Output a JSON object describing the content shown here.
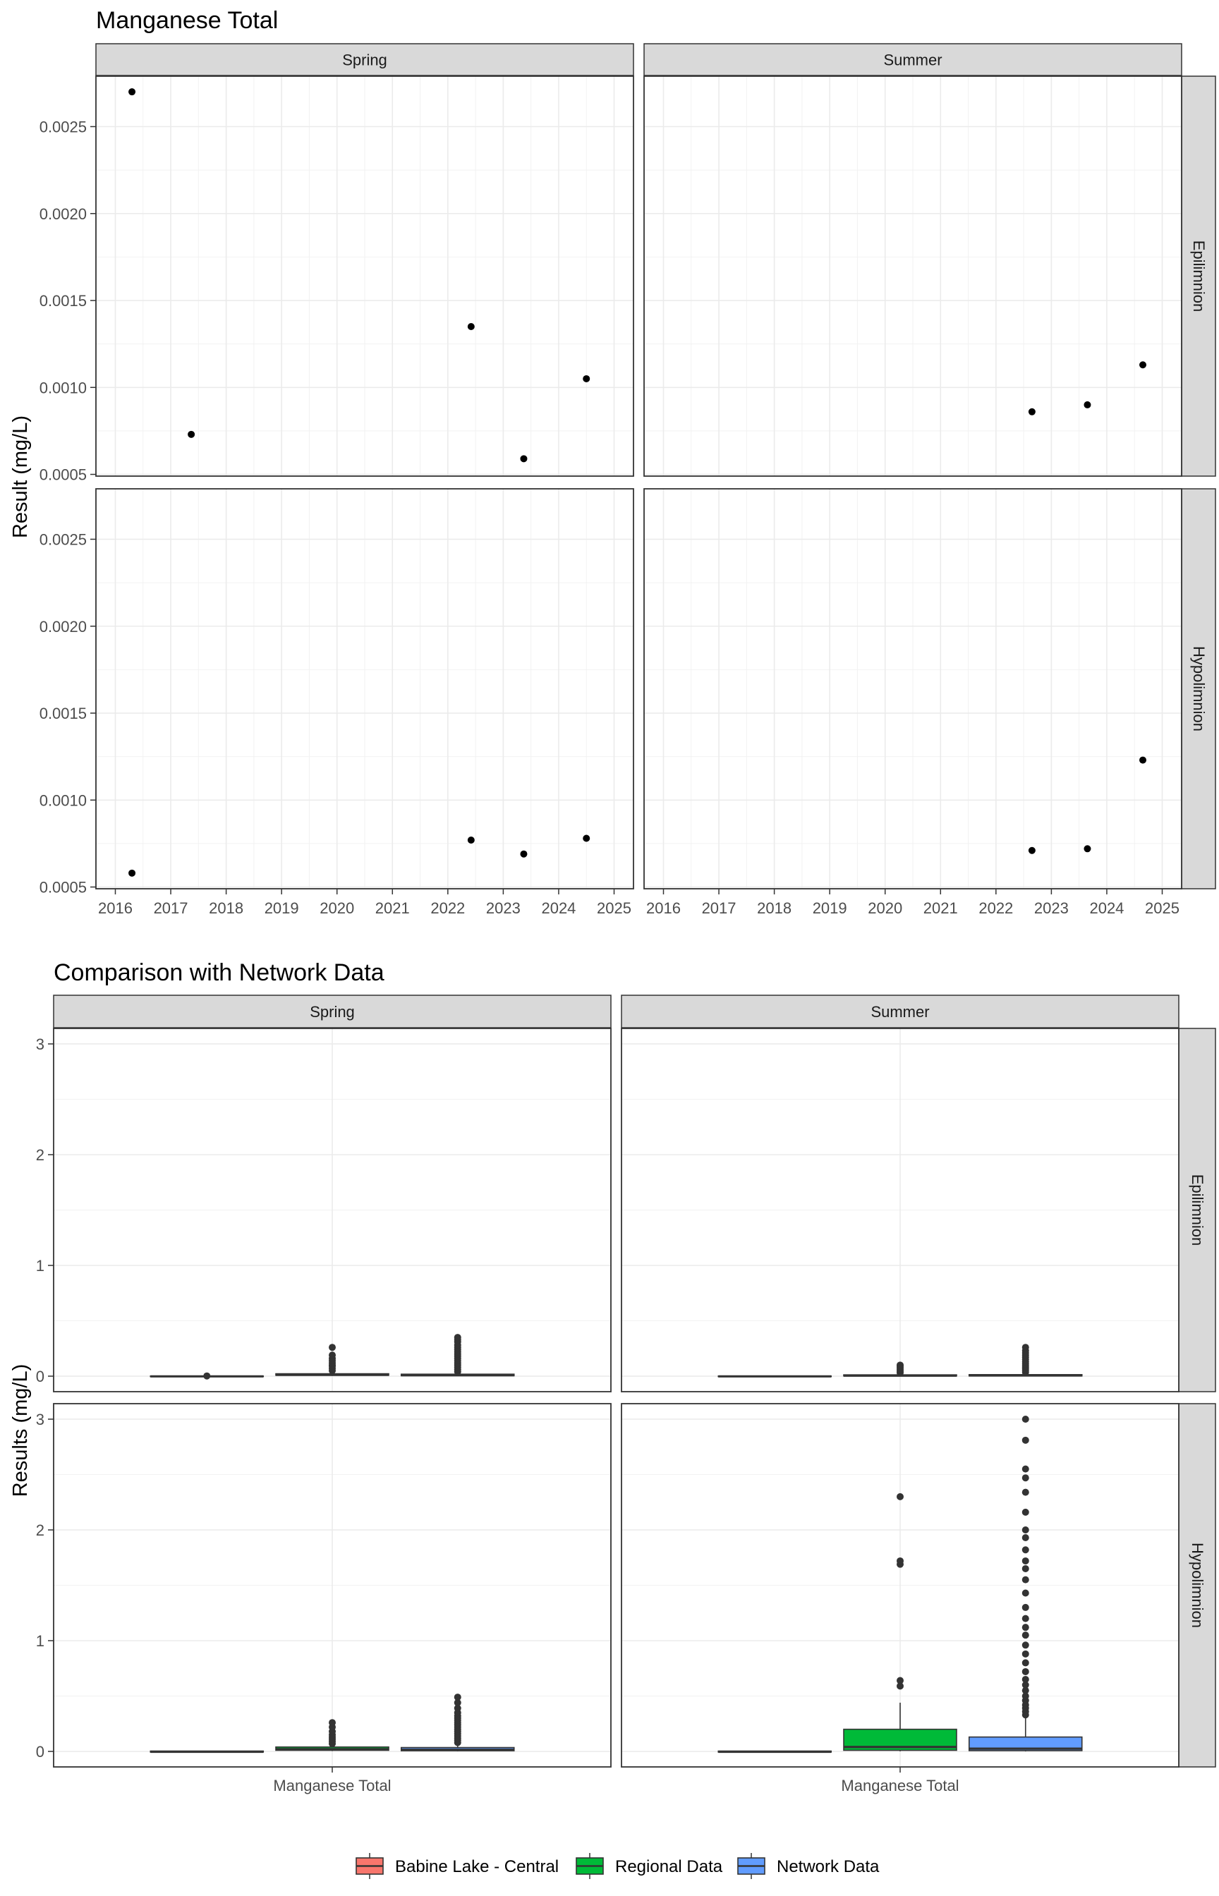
{
  "chart_data": [
    {
      "type": "scatter",
      "title": "Manganese Total",
      "ylabel": "Result (mg/L)",
      "xlabel": "",
      "columns": [
        "Spring",
        "Summer"
      ],
      "rows": [
        "Epilimnion",
        "Hypolimnion"
      ],
      "x_ticks": [
        "2016",
        "2017",
        "2018",
        "2019",
        "2020",
        "2021",
        "2022",
        "2023",
        "2024",
        "2025"
      ],
      "xlim": [
        2015.65,
        2025.35
      ],
      "y_ticks": [
        "0.0005",
        "0.0010",
        "0.0015",
        "0.0020",
        "0.0025"
      ],
      "ylim": [
        0.00049,
        0.00279
      ],
      "grid": true,
      "point_color": "#000000",
      "panels": [
        {
          "column": "Spring",
          "row": "Epilimnion",
          "points": [
            {
              "x": 2016.3,
              "y": 0.0027
            },
            {
              "x": 2017.37,
              "y": 0.00073
            },
            {
              "x": 2022.42,
              "y": 0.00135
            },
            {
              "x": 2023.37,
              "y": 0.00059
            },
            {
              "x": 2024.5,
              "y": 0.00105
            }
          ]
        },
        {
          "column": "Summer",
          "row": "Epilimnion",
          "points": [
            {
              "x": 2022.65,
              "y": 0.00086
            },
            {
              "x": 2023.65,
              "y": 0.0009
            },
            {
              "x": 2024.65,
              "y": 0.00113
            }
          ]
        },
        {
          "column": "Spring",
          "row": "Hypolimnion",
          "points": [
            {
              "x": 2016.3,
              "y": 0.00058
            },
            {
              "x": 2022.42,
              "y": 0.00077
            },
            {
              "x": 2023.37,
              "y": 0.00069
            },
            {
              "x": 2024.5,
              "y": 0.00078
            }
          ]
        },
        {
          "column": "Summer",
          "row": "Hypolimnion",
          "points": [
            {
              "x": 2022.65,
              "y": 0.00071
            },
            {
              "x": 2023.65,
              "y": 0.00072
            },
            {
              "x": 2024.65,
              "y": 0.00123
            }
          ]
        }
      ]
    },
    {
      "type": "box",
      "title": "Comparison with Network Data",
      "ylabel": "Results (mg/L)",
      "xlabel": "",
      "category": "Manganese Total",
      "columns": [
        "Spring",
        "Summer"
      ],
      "rows": [
        "Epilimnion",
        "Hypolimnion"
      ],
      "y_ticks": [
        "0",
        "1",
        "2",
        "3"
      ],
      "ylim": [
        -0.14,
        3.14
      ],
      "grid": true,
      "legend_position": "bottom",
      "series": [
        {
          "name": "Babine Lake - Central",
          "color": "#F8766D"
        },
        {
          "name": "Regional Data",
          "color": "#00BA38"
        },
        {
          "name": "Network Data",
          "color": "#619CFF"
        }
      ],
      "panels": [
        {
          "column": "Spring",
          "row": "Epilimnion",
          "boxes": [
            {
              "series": "Babine Lake - Central",
              "q1": -0.004,
              "median": -0.002,
              "q3": 0.001,
              "whisker_low": -0.006,
              "whisker_high": 0.003,
              "outliers": [
                0.002
              ]
            },
            {
              "series": "Regional Data",
              "q1": 0.008,
              "median": 0.012,
              "q3": 0.022,
              "whisker_low": 0.002,
              "whisker_high": 0.03,
              "outliers": [
                0.05,
                0.07,
                0.09,
                0.1,
                0.12,
                0.14,
                0.16,
                0.19,
                0.26
              ]
            },
            {
              "series": "Network Data",
              "q1": 0.004,
              "median": 0.009,
              "q3": 0.018,
              "whisker_low": 0.001,
              "whisker_high": 0.03,
              "outliers": [
                0.04,
                0.06,
                0.08,
                0.1,
                0.12,
                0.14,
                0.16,
                0.18,
                0.2,
                0.22,
                0.24,
                0.26,
                0.28,
                0.31,
                0.33,
                0.35
              ]
            }
          ]
        },
        {
          "column": "Summer",
          "row": "Epilimnion",
          "boxes": [
            {
              "series": "Babine Lake - Central",
              "q1": -0.004,
              "median": -0.002,
              "q3": 0.001,
              "whisker_low": -0.006,
              "whisker_high": 0.003,
              "outliers": []
            },
            {
              "series": "Regional Data",
              "q1": 0.002,
              "median": 0.005,
              "q3": 0.012,
              "whisker_low": 0.0,
              "whisker_high": 0.02,
              "outliers": [
                0.03,
                0.045,
                0.06,
                0.075,
                0.09,
                0.1
              ]
            },
            {
              "series": "Network Data",
              "q1": 0.002,
              "median": 0.006,
              "q3": 0.014,
              "whisker_low": 0.0,
              "whisker_high": 0.025,
              "outliers": [
                0.035,
                0.05,
                0.065,
                0.08,
                0.095,
                0.11,
                0.13,
                0.15,
                0.17,
                0.19,
                0.21,
                0.23,
                0.26
              ]
            }
          ]
        },
        {
          "column": "Spring",
          "row": "Hypolimnion",
          "boxes": [
            {
              "series": "Babine Lake - Central",
              "q1": -0.006,
              "median": -0.003,
              "q3": 0.003,
              "whisker_low": -0.008,
              "whisker_high": 0.005,
              "outliers": []
            },
            {
              "series": "Regional Data",
              "q1": 0.01,
              "median": 0.02,
              "q3": 0.04,
              "whisker_low": 0.003,
              "whisker_high": 0.06,
              "outliers": [
                0.07,
                0.09,
                0.11,
                0.13,
                0.15,
                0.18,
                0.22,
                0.26
              ]
            },
            {
              "series": "Network Data",
              "q1": 0.006,
              "median": 0.015,
              "q3": 0.035,
              "whisker_low": 0.001,
              "whisker_high": 0.065,
              "outliers": [
                0.08,
                0.1,
                0.12,
                0.14,
                0.16,
                0.18,
                0.2,
                0.22,
                0.24,
                0.26,
                0.28,
                0.3,
                0.32,
                0.35,
                0.39,
                0.44,
                0.49
              ]
            }
          ]
        },
        {
          "column": "Summer",
          "row": "Hypolimnion",
          "boxes": [
            {
              "series": "Babine Lake - Central",
              "q1": -0.006,
              "median": -0.003,
              "q3": 0.003,
              "whisker_low": -0.008,
              "whisker_high": 0.005,
              "outliers": []
            },
            {
              "series": "Regional Data",
              "q1": 0.01,
              "median": 0.04,
              "q3": 0.2,
              "whisker_low": 0.001,
              "whisker_high": 0.44,
              "outliers": [
                0.59,
                0.64,
                1.69,
                1.72,
                2.3
              ]
            },
            {
              "series": "Network Data",
              "q1": 0.007,
              "median": 0.025,
              "q3": 0.13,
              "whisker_low": 0.0,
              "whisker_high": 0.3,
              "outliers": [
                0.33,
                0.36,
                0.39,
                0.42,
                0.46,
                0.5,
                0.55,
                0.6,
                0.65,
                0.72,
                0.8,
                0.88,
                0.96,
                1.05,
                1.12,
                1.2,
                1.3,
                1.43,
                1.55,
                1.65,
                1.72,
                1.82,
                1.93,
                2.0,
                2.16,
                2.34,
                2.47,
                2.55,
                2.81,
                3.0
              ]
            }
          ]
        }
      ]
    }
  ]
}
